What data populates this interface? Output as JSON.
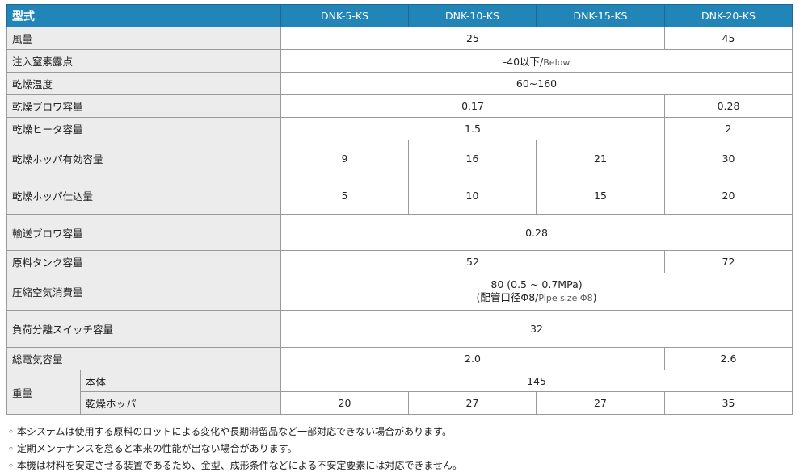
{
  "header": {
    "label": "型式",
    "models": [
      "DNK-5-KS",
      "DNK-10-KS",
      "DNK-15-KS",
      "DNK-20-KS"
    ]
  },
  "rows": {
    "airflow": {
      "label": "風量",
      "a": "25",
      "b": "45"
    },
    "dewpoint": {
      "label": "注入窒素露点",
      "value": "-40以下/",
      "sub": "Below"
    },
    "temp": {
      "label": "乾燥温度",
      "value": "60~160"
    },
    "blower": {
      "label": "乾燥ブロワ容量",
      "a": "0.17",
      "b": "0.28"
    },
    "heater": {
      "label": "乾燥ヒータ容量",
      "a": "1.5",
      "b": "2"
    },
    "hopper_cap": {
      "label": "乾燥ホッパ有効容量",
      "values": [
        "9",
        "16",
        "21",
        "30"
      ]
    },
    "hopper_load": {
      "label": "乾燥ホッパ仕込量",
      "values": [
        "5",
        "10",
        "15",
        "20"
      ]
    },
    "conveyor": {
      "label": "輸送ブロワ容量",
      "value": "0.28"
    },
    "tank": {
      "label": "原料タンク容量",
      "a": "52",
      "b": "72"
    },
    "air": {
      "label": "圧縮空気消費量",
      "line1": "80 (0.5 ~ 0.7MPa)",
      "line2a": "(配管口径Φ8/",
      "line2b": "Pipe size Φ8",
      "line2c": ")"
    },
    "switch": {
      "label": "負荷分離スイッチ容量",
      "value": "32"
    },
    "power": {
      "label": "総電気容量",
      "a": "2.0",
      "b": "2.6"
    },
    "weight": {
      "label": "重量",
      "body_label": "本体",
      "body": "145",
      "hopper_label": "乾燥ホッパ",
      "hopper": [
        "20",
        "27",
        "27",
        "35"
      ]
    }
  },
  "notes": [
    "◦ 本システムは使用する原料のロットによる変化や長期滞留品など一部対応できない場合があります。",
    "◦ 定期メンテナンスを怠ると本来の性能が出ない場合があります。",
    "◦ 本機は材料を安定させる装置であるため、金型、成形条件などによる不安定要素には対応できません。"
  ]
}
